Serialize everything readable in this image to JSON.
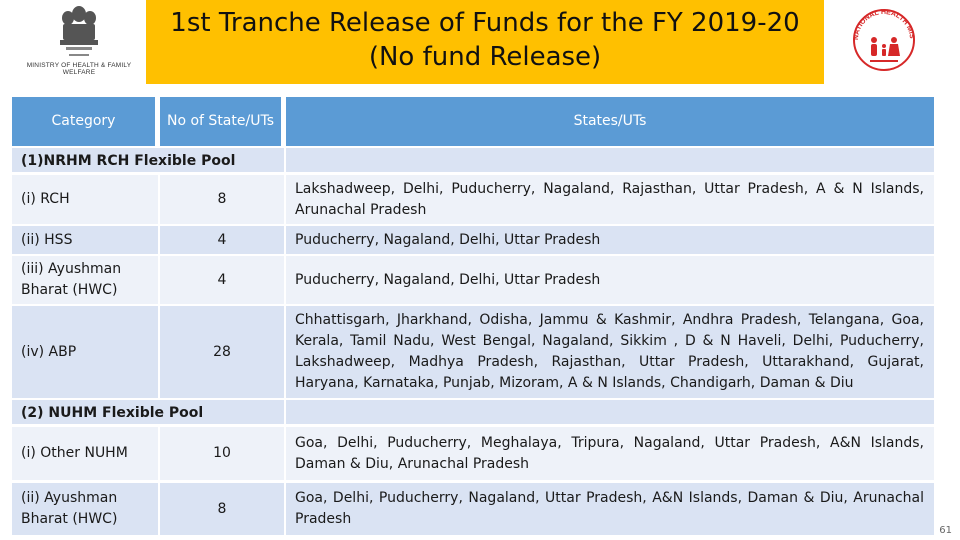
{
  "header": {
    "left_logo_caption": "MINISTRY OF HEALTH & FAMILY WELFARE",
    "title_line1": "1st Tranche Release of Funds for the FY 2019-20",
    "title_line2": "(No fund Release)",
    "right_logo_text": "NATIONAL HEALTH MISSION",
    "accent": "#ffc000"
  },
  "table": {
    "header_color": "#5b9bd5",
    "columns": [
      "Category",
      "No of State/UTs",
      "States/UTs"
    ],
    "sections": [
      {
        "title": "(1)NRHM RCH Flexible Pool",
        "rows": [
          {
            "category": "(i) RCH",
            "count": "8",
            "states": "Lakshadweep, Delhi, Puducherry, Nagaland, Rajasthan, Uttar Pradesh, A & N Islands, Arunachal Pradesh"
          },
          {
            "category": "(ii) HSS",
            "count": "4",
            "states": "Puducherry, Nagaland, Delhi, Uttar Pradesh"
          },
          {
            "category": "(iii) Ayushman Bharat (HWC)",
            "count": "4",
            "states": "Puducherry, Nagaland, Delhi, Uttar Pradesh"
          },
          {
            "category": "(iv) ABP",
            "count": "28",
            "states": "Chhattisgarh, Jharkhand, Odisha, Jammu & Kashmir, Andhra Pradesh, Telangana, Goa, Kerala, Tamil Nadu, West Bengal, Nagaland, Sikkim , D & N Haveli, Delhi, Puducherry, Lakshadweep, Madhya Pradesh, Rajasthan, Uttar Pradesh, Uttarakhand, Gujarat, Haryana, Karnataka, Punjab, Mizoram, A & N Islands, Chandigarh, Daman & Diu"
          }
        ]
      },
      {
        "title": "(2) NUHM Flexible Pool",
        "rows": [
          {
            "category": "(i) Other NUHM",
            "count": "10",
            "states": "Goa, Delhi, Puducherry, Meghalaya, Tripura, Nagaland, Uttar Pradesh, A&N Islands, Daman & Diu, Arunachal Pradesh"
          },
          {
            "category": "(ii) Ayushman Bharat (HWC)",
            "count": "8",
            "states": "Goa, Delhi, Puducherry, Nagaland, Uttar Pradesh, A&N Islands, Daman & Diu, Arunachal Pradesh"
          }
        ]
      }
    ]
  },
  "page_number": "61"
}
